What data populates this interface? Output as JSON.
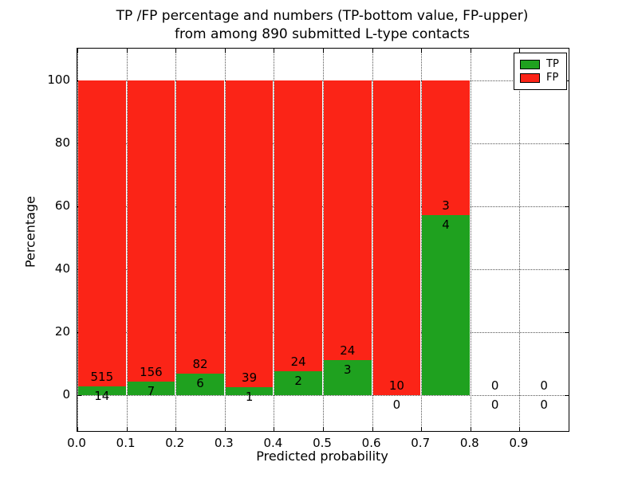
{
  "title": {
    "line1": "TP /FP percentage and numbers (TP-bottom value, FP-upper)",
    "line2": "from among 890 submitted L-type contacts"
  },
  "axes": {
    "xlabel": "Predicted probability",
    "ylabel": "Percentage"
  },
  "legend": {
    "items": [
      {
        "label": "TP",
        "color": "#1fa11f"
      },
      {
        "label": "FP",
        "color": "#fb2417"
      }
    ]
  },
  "chart_data": {
    "type": "bar",
    "stacked": true,
    "normalized_to_percent": 100,
    "title": "TP /FP percentage and numbers (TP-bottom value, FP-upper) from among 890 submitted L-type contacts",
    "xlabel": "Predicted probability",
    "ylabel": "Percentage",
    "grid": true,
    "legend_position": "upper right",
    "xlim": [
      0,
      1
    ],
    "ylim": [
      -11.4,
      110
    ],
    "bin_width": 0.1,
    "x_tick_labels": [
      "0.0",
      "0.1",
      "0.2",
      "0.3",
      "0.4",
      "0.5",
      "0.6",
      "0.7",
      "0.8",
      "0.9"
    ],
    "y_tick_values": [
      0,
      20,
      40,
      60,
      80,
      100
    ],
    "series": [
      {
        "name": "TP",
        "color": "#1fa11f"
      },
      {
        "name": "FP",
        "color": "#fb2417"
      }
    ],
    "bins": [
      {
        "x0": 0.0,
        "tp": 14,
        "fp": 515
      },
      {
        "x0": 0.1,
        "tp": 7,
        "fp": 156
      },
      {
        "x0": 0.2,
        "tp": 6,
        "fp": 82
      },
      {
        "x0": 0.3,
        "tp": 1,
        "fp": 39
      },
      {
        "x0": 0.4,
        "tp": 2,
        "fp": 24
      },
      {
        "x0": 0.5,
        "tp": 3,
        "fp": 24
      },
      {
        "x0": 0.6,
        "tp": 0,
        "fp": 10
      },
      {
        "x0": 0.7,
        "tp": 4,
        "fp": 3
      },
      {
        "x0": 0.8,
        "tp": 0,
        "fp": 0
      },
      {
        "x0": 0.9,
        "tp": 0,
        "fp": 0
      }
    ]
  }
}
